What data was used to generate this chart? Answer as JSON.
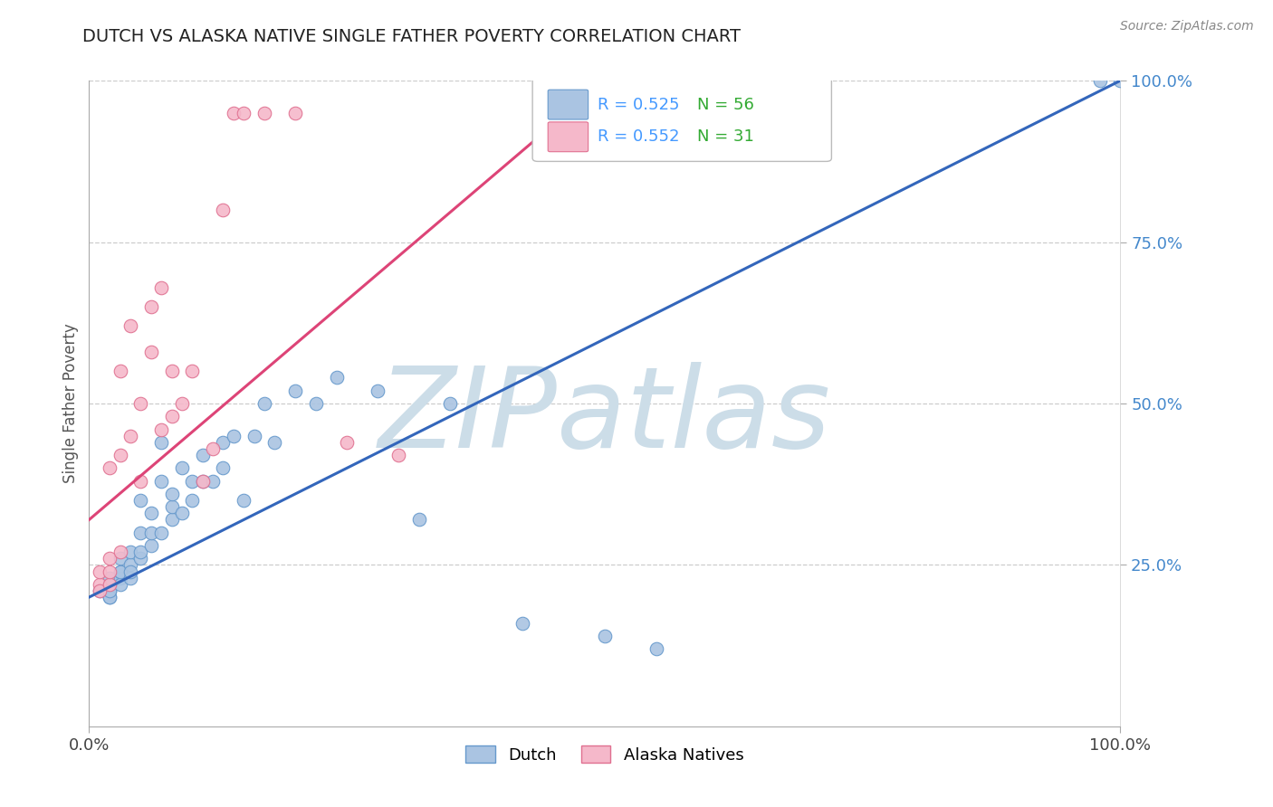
{
  "title": "DUTCH VS ALASKA NATIVE SINGLE FATHER POVERTY CORRELATION CHART",
  "source": "Source: ZipAtlas.com",
  "ylabel": "Single Father Poverty",
  "xlim": [
    0.0,
    1.0
  ],
  "ylim": [
    0.0,
    1.0
  ],
  "xtick_positions": [
    0.0,
    1.0
  ],
  "xtick_labels": [
    "0.0%",
    "100.0%"
  ],
  "ytick_positions": [
    0.25,
    0.5,
    0.75,
    1.0
  ],
  "ytick_labels": [
    "25.0%",
    "50.0%",
    "75.0%",
    "100.0%"
  ],
  "dutch_R": 0.525,
  "dutch_N": 56,
  "alaska_R": 0.552,
  "alaska_N": 31,
  "dutch_color": "#aac4e2",
  "dutch_edge_color": "#6699cc",
  "alaska_color": "#f5b8ca",
  "alaska_edge_color": "#e07090",
  "dutch_line_color": "#3366bb",
  "alaska_line_color": "#dd4477",
  "ytick_color": "#4488cc",
  "xtick_color": "#444444",
  "watermark_text": "ZIPatlas",
  "watermark_color": "#ccdde8",
  "legend_R_color": "#4499ff",
  "legend_N_color": "#33aa33",
  "legend_box_color": "#bbbbbb",
  "dutch_x": [
    0.01,
    0.02,
    0.02,
    0.02,
    0.02,
    0.02,
    0.02,
    0.02,
    0.02,
    0.03,
    0.03,
    0.03,
    0.03,
    0.03,
    0.04,
    0.04,
    0.04,
    0.04,
    0.05,
    0.05,
    0.05,
    0.05,
    0.06,
    0.06,
    0.06,
    0.07,
    0.07,
    0.07,
    0.08,
    0.08,
    0.08,
    0.09,
    0.09,
    0.1,
    0.1,
    0.11,
    0.11,
    0.12,
    0.13,
    0.13,
    0.14,
    0.15,
    0.16,
    0.17,
    0.18,
    0.2,
    0.22,
    0.24,
    0.28,
    0.32,
    0.35,
    0.42,
    0.5,
    0.55,
    0.98,
    1.0
  ],
  "dutch_y": [
    0.21,
    0.22,
    0.2,
    0.22,
    0.21,
    0.22,
    0.2,
    0.21,
    0.23,
    0.23,
    0.24,
    0.22,
    0.24,
    0.26,
    0.23,
    0.25,
    0.24,
    0.27,
    0.26,
    0.27,
    0.3,
    0.35,
    0.28,
    0.3,
    0.33,
    0.3,
    0.38,
    0.44,
    0.32,
    0.34,
    0.36,
    0.4,
    0.33,
    0.35,
    0.38,
    0.38,
    0.42,
    0.38,
    0.4,
    0.44,
    0.45,
    0.35,
    0.45,
    0.5,
    0.44,
    0.52,
    0.5,
    0.54,
    0.52,
    0.32,
    0.5,
    0.16,
    0.14,
    0.12,
    1.0,
    1.0
  ],
  "alaska_x": [
    0.01,
    0.01,
    0.01,
    0.02,
    0.02,
    0.02,
    0.02,
    0.03,
    0.03,
    0.03,
    0.04,
    0.04,
    0.05,
    0.05,
    0.06,
    0.06,
    0.07,
    0.07,
    0.08,
    0.08,
    0.09,
    0.1,
    0.11,
    0.12,
    0.13,
    0.14,
    0.15,
    0.17,
    0.2,
    0.25,
    0.3
  ],
  "alaska_y": [
    0.22,
    0.21,
    0.24,
    0.22,
    0.24,
    0.26,
    0.4,
    0.27,
    0.42,
    0.55,
    0.45,
    0.62,
    0.38,
    0.5,
    0.58,
    0.65,
    0.46,
    0.68,
    0.48,
    0.55,
    0.5,
    0.55,
    0.38,
    0.43,
    0.8,
    0.95,
    0.95,
    0.95,
    0.95,
    0.44,
    0.42
  ],
  "dutch_trendline_x0": 0.0,
  "dutch_trendline_y0": 0.2,
  "dutch_trendline_x1": 1.0,
  "dutch_trendline_y1": 1.0,
  "alaska_trendline_x0": 0.0,
  "alaska_trendline_y0": 0.32,
  "alaska_trendline_x1": 0.5,
  "alaska_trendline_y1": 1.0
}
